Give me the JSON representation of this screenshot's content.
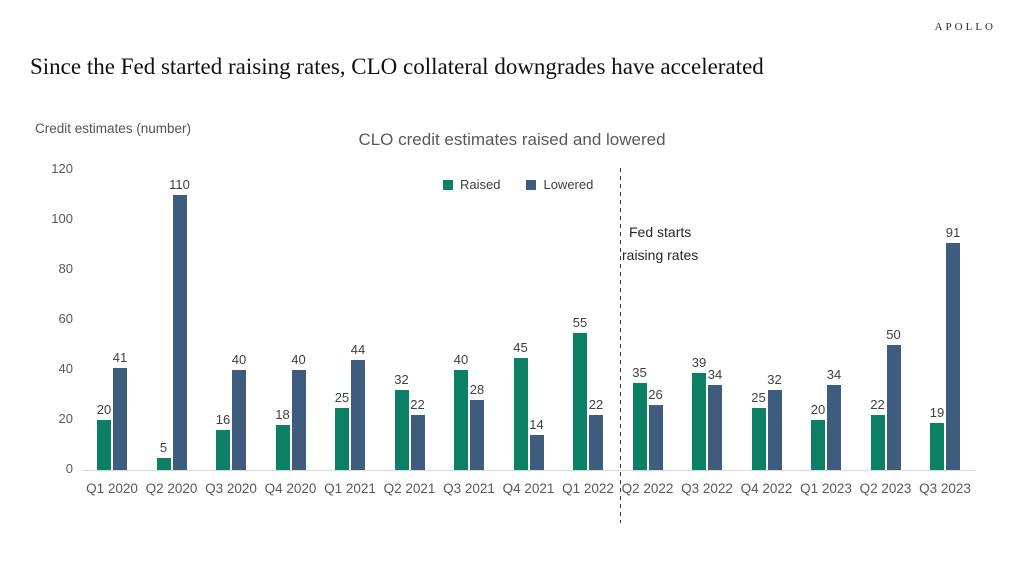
{
  "brand": "APOLLO",
  "page_title": "Since the Fed started raising rates, CLO collateral downgrades have accelerated",
  "chart_data": {
    "type": "bar",
    "title": "CLO credit estimates raised and lowered",
    "ylabel": "Credit estimates (number)",
    "xlabel": "",
    "categories": [
      "Q1 2020",
      "Q2 2020",
      "Q3 2020",
      "Q4 2020",
      "Q1 2021",
      "Q2 2021",
      "Q3 2021",
      "Q4 2021",
      "Q1 2022",
      "Q2 2022",
      "Q3 2022",
      "Q4 2022",
      "Q1 2023",
      "Q2 2023",
      "Q3 2023"
    ],
    "series": [
      {
        "name": "Raised",
        "color": "#0c8065",
        "values": [
          20,
          5,
          16,
          18,
          25,
          32,
          40,
          45,
          55,
          35,
          39,
          25,
          20,
          22,
          19
        ]
      },
      {
        "name": "Lowered",
        "color": "#3e5c7d",
        "values": [
          41,
          110,
          40,
          40,
          44,
          22,
          28,
          14,
          22,
          26,
          34,
          32,
          34,
          50,
          91
        ]
      }
    ],
    "ylim": [
      0,
      120
    ],
    "yticks": [
      0,
      20,
      40,
      60,
      80,
      100,
      120
    ],
    "grid": false,
    "legend_position": "top-center",
    "annotation": {
      "line1": "Fed starts",
      "line2": "raising rates",
      "divider_after_category": "Q1 2022"
    }
  }
}
